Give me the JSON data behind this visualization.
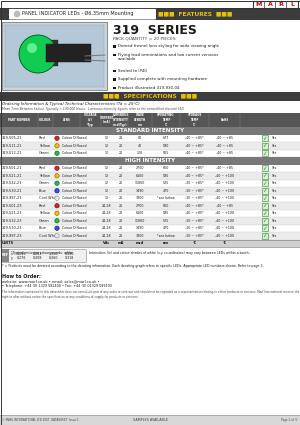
{
  "title_header": "PANEL INDICATOR LEDs - Ø6.35mm Mounting",
  "series": "319  SERIES",
  "pack_qty": "PACK QUANTITY = 20 PIECES",
  "features": [
    "Domed fresnel lens styling for wide viewing angle",
    "Flying lead terminations and low current versions\navailable",
    "Sealed to IP40",
    "Supplied complete with mounting hardware",
    "Product illustrated 319-930-04"
  ],
  "spec_note1": "Ordering Information & Typical Technical Characteristics (Ta = 25°C)",
  "spec_note2": "Mean Time Between Failure Typically = 100,000 Hours.  Luminous Intensity figures refer to the unmodified discrete LED",
  "std_intensity_label": "STANDARD INTENSITY",
  "high_intensity_label": "HIGH INTENSITY",
  "std_rows": [
    [
      "319-505-21",
      "Red",
      "red",
      "Colour Diffused",
      "12",
      "20",
      "60",
      "677",
      "-40 ~ +85*",
      "-40 ~ +85",
      "Yes"
    ],
    [
      "319-511-21",
      "Yellow",
      "yellow",
      "Colour Diffused",
      "12",
      "20",
      "40",
      "590",
      "-40 ~ +85*",
      "-40 ~ +85",
      "Yes"
    ],
    [
      "319-512-21",
      "Green",
      "green",
      "Colour Diffused",
      "12",
      "20",
      "120",
      "565",
      "-40 ~ +85*",
      "-40 ~ +85",
      "Yes"
    ]
  ],
  "high_rows": [
    [
      "319-501-21",
      "Red",
      "red",
      "Colour Diffused",
      "12",
      "20",
      "2700",
      "660",
      "-40 ~ +85*",
      "-40 ~ +85",
      "Yes"
    ],
    [
      "319-521-21",
      "Yellow",
      "yellow",
      "Colour Diffused",
      "12",
      "20",
      "6100",
      "595",
      "-40 ~ +85*",
      "-40 ~ +100",
      "Yes"
    ],
    [
      "319-532-21",
      "Green",
      "green",
      "Colour Diffused",
      "12",
      "20",
      "11800",
      "525",
      "-30 ~ +85*",
      "-40 ~ +100",
      "Yes"
    ],
    [
      "319-530-21",
      "Blue",
      "blue",
      "Colour Diffused",
      "12",
      "20",
      "3490",
      "470",
      "-30 ~ +85*",
      "-40 ~ +100",
      "Yes"
    ],
    [
      "319-997-21",
      "Cool White",
      "white",
      "Colour Diffused",
      "12",
      "20",
      "7800",
      "*see below",
      "-30 ~ +85*",
      "-40 ~ +100",
      "Yes"
    ],
    [
      "319-501-23",
      "Red",
      "red",
      "Colour Diffused",
      "24-28",
      "20",
      "2700",
      "660",
      "-40 ~ +85*",
      "-40 ~ +85",
      "Yes"
    ],
    [
      "319-521-23",
      "Yellow",
      "yellow",
      "Colour Diffused",
      "24-28",
      "20",
      "6100",
      "595",
      "-40 ~ +85*",
      "-40 ~ +100",
      "Yes"
    ],
    [
      "319-532-23",
      "Green",
      "green",
      "Colour Diffused",
      "24-28",
      "20",
      "11800",
      "525",
      "-30 ~ +85*",
      "-40 ~ +100",
      "Yes"
    ],
    [
      "319-530-23",
      "Blue",
      "blue",
      "Colour Diffused",
      "24-28",
      "20",
      "3490",
      "470",
      "-30 ~ +85*",
      "-40 ~ +100",
      "Yes"
    ],
    [
      "319-997-23",
      "Cool White",
      "white",
      "Colour Diffused",
      "24-28",
      "20",
      "7800",
      "*see below",
      "-30 ~ +85*",
      "-40 ~ +100",
      "Yes"
    ]
  ],
  "units_row": [
    "UNITS",
    "",
    "",
    "",
    "Vdc",
    "mA",
    "mcd",
    "nm",
    "°C",
    "°C",
    ""
  ],
  "ref_label": "REF",
  "ref_rows": [
    [
      "x",
      "0.295",
      "0.283",
      "0.330",
      "0.330"
    ],
    [
      "y",
      "0.276",
      "0.308",
      "0.360",
      "0.318"
    ]
  ],
  "ref_note_title": "*Typical emission colour co-ords: white",
  "ref_note": "Intensities (lv) and colour shades of white (x,y co-ordinates) may vary between LEDs within a batch.",
  "derating_note": "* = Products must be derated according to the derating information. Each derating graph refers to specific LEDs. Appropriate LED numbers shown. Refer to page 3.",
  "how_to_order": "How to Order:",
  "website": "website: www.marl.co.uk • email: sales@marl.co.uk •",
  "telephone": "• Telephone: +44 (0) 1329 582400 • Fax: +44 (0) 01329 589193",
  "disclaimer": "The information contained in this datasheet does not constitute part of any order or contract and should not be regarded as a representation relating to either products or services. Marl International reserve the right to alter without notice the specification or any conditions of supply for products or services.",
  "copyright": "© MARL INTERNATIONAL LTD 2007  DATASHEET  Issue 1",
  "samples": "SAMPLES AVAILABLE",
  "page": "Page 1 of  6",
  "bg_color": "#ffffff",
  "dark_bar_color": "#3c3c3c",
  "mid_bar_color": "#787878",
  "row_even_color": "#ffffff",
  "row_odd_color": "#ebebeb",
  "units_row_color": "#d0d0d0",
  "header_text_color": "#ffffff",
  "band_text_color": "#ffffff",
  "dark_text": "#1a1a1a",
  "mid_text": "#444444",
  "features_accent": "#e8c000",
  "rohs_green": "#2a8a2a",
  "logo_red": "#cc0000"
}
